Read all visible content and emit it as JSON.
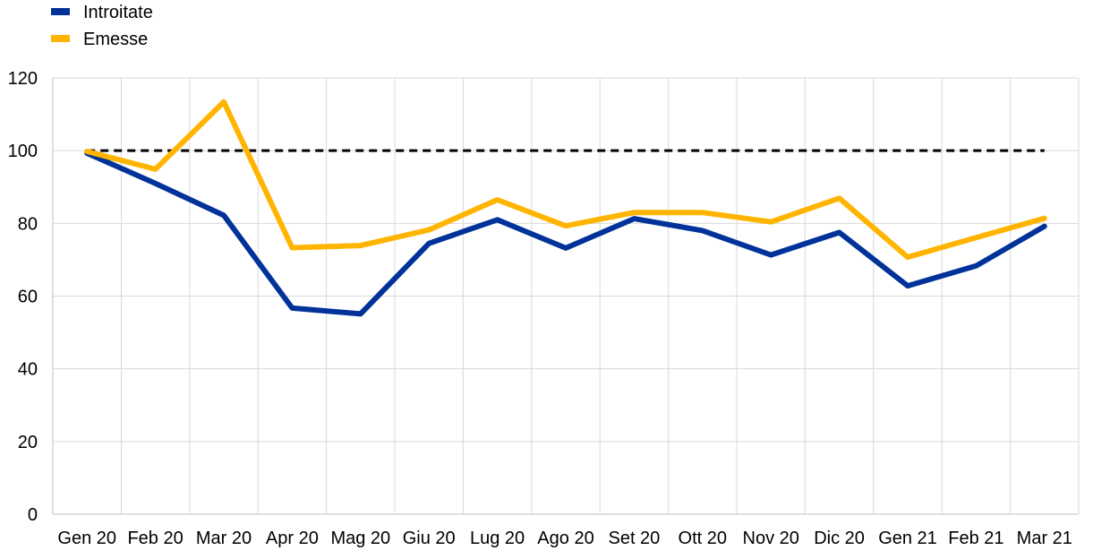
{
  "chart_data": {
    "type": "line",
    "title": "",
    "xlabel": "",
    "ylabel": "",
    "ylim": [
      0,
      120
    ],
    "yticks": [
      "0",
      "20",
      "40",
      "60",
      "80",
      "100",
      "120"
    ],
    "grid": "on",
    "legend_position": "top-left",
    "categories": [
      "Gen 20",
      "Feb 20",
      "Mar 20",
      "Apr 20",
      "Mag 20",
      "Giu 20",
      "Lug 20",
      "Ago 20",
      "Set 20",
      "Ott 20",
      "Nov 20",
      "Dic 20",
      "Gen 21",
      "Feb 21",
      "Mar 21"
    ],
    "series": [
      {
        "name": "Introitate",
        "color": "#003299",
        "values": [
          99.3,
          91,
          82.2,
          56.7,
          55.1,
          74.5,
          81,
          73.2,
          81.3,
          78,
          71.3,
          77.5,
          62.8,
          68.3,
          79.2
        ]
      },
      {
        "name": "Emesse",
        "color": "#ffb400",
        "values": [
          99.8,
          94.9,
          113.4,
          73.3,
          73.9,
          78.2,
          86.5,
          79.3,
          83,
          83,
          80.4,
          86.9,
          70.7,
          76.1,
          81.4
        ]
      }
    ],
    "reference_line": {
      "value": 100,
      "style": "dashed",
      "color": "#000000"
    }
  }
}
